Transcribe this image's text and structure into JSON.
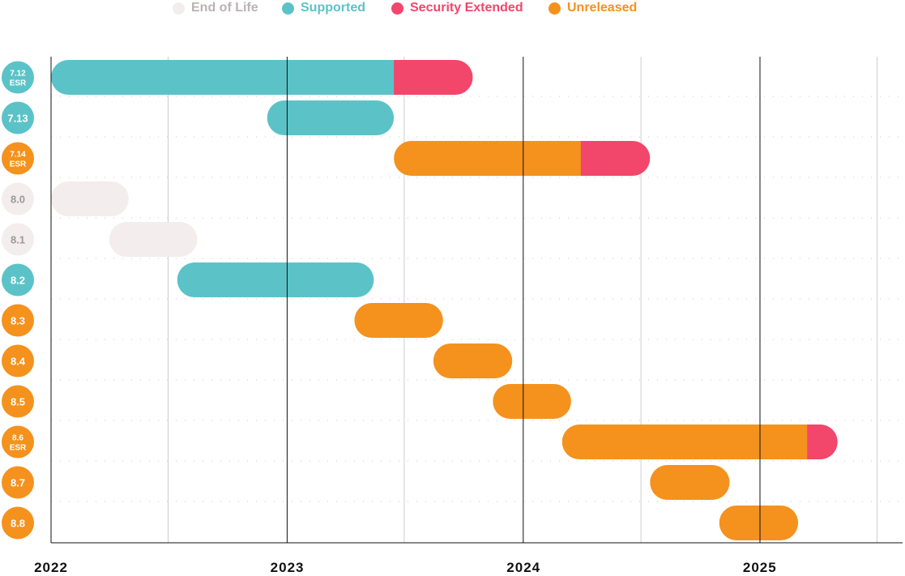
{
  "chart_data": {
    "type": "timeline",
    "legend": [
      {
        "label": "End of Life",
        "color": "#f3eded",
        "text_color": "#b9b3b3"
      },
      {
        "label": "Supported",
        "color": "#5bc3c8",
        "text_color": "#5bc3c8"
      },
      {
        "label": "Security Extended",
        "color": "#f2466b",
        "text_color": "#f2466b"
      },
      {
        "label": "Unreleased",
        "color": "#f4921d",
        "text_color": "#f4921d"
      }
    ],
    "x_ticks": [
      "2022",
      "2023",
      "2024",
      "2025"
    ],
    "xlim": [
      "2022-01-01",
      "2025-07-01"
    ],
    "grid": {
      "year_lines": true,
      "half_year_lines": true,
      "row_dotted_lines": true
    },
    "status_colors": {
      "eol": "#f3eded",
      "supported": "#5bc3c8",
      "security": "#f2466b",
      "unreleased": "#f4921d"
    },
    "versions": [
      {
        "label": "7.12",
        "sublabel": "ESR",
        "status": "supported",
        "segments": [
          {
            "start": "2022-01-01",
            "end": "2023-06-15",
            "status": "supported"
          },
          {
            "start": "2023-06-15",
            "end": "2023-10-15",
            "status": "security"
          }
        ]
      },
      {
        "label": "7.13",
        "sublabel": "",
        "status": "supported",
        "segments": [
          {
            "start": "2022-12-01",
            "end": "2023-06-15",
            "status": "supported"
          }
        ]
      },
      {
        "label": "7.14",
        "sublabel": "ESR",
        "status": "unreleased",
        "segments": [
          {
            "start": "2023-06-15",
            "end": "2024-03-30",
            "status": "unreleased"
          },
          {
            "start": "2024-03-30",
            "end": "2024-07-15",
            "status": "security"
          }
        ]
      },
      {
        "label": "8.0",
        "sublabel": "",
        "status": "eol",
        "segments": [
          {
            "start": "2022-01-01",
            "end": "2022-05-01",
            "status": "eol"
          }
        ]
      },
      {
        "label": "8.1",
        "sublabel": "",
        "status": "eol",
        "segments": [
          {
            "start": "2022-04-01",
            "end": "2022-08-15",
            "status": "eol"
          }
        ]
      },
      {
        "label": "8.2",
        "sublabel": "",
        "status": "supported",
        "segments": [
          {
            "start": "2022-07-15",
            "end": "2023-05-15",
            "status": "supported"
          }
        ]
      },
      {
        "label": "8.3",
        "sublabel": "",
        "status": "unreleased",
        "segments": [
          {
            "start": "2023-04-15",
            "end": "2023-08-30",
            "status": "unreleased"
          }
        ]
      },
      {
        "label": "8.4",
        "sublabel": "",
        "status": "unreleased",
        "segments": [
          {
            "start": "2023-08-15",
            "end": "2023-12-15",
            "status": "unreleased"
          }
        ]
      },
      {
        "label": "8.5",
        "sublabel": "",
        "status": "unreleased",
        "segments": [
          {
            "start": "2023-11-15",
            "end": "2024-03-15",
            "status": "unreleased"
          }
        ]
      },
      {
        "label": "8.6",
        "sublabel": "ESR",
        "status": "unreleased",
        "segments": [
          {
            "start": "2024-03-01",
            "end": "2025-03-15",
            "status": "unreleased"
          },
          {
            "start": "2025-03-15",
            "end": "2025-05-01",
            "status": "security"
          }
        ]
      },
      {
        "label": "8.7",
        "sublabel": "",
        "status": "unreleased",
        "segments": [
          {
            "start": "2024-07-15",
            "end": "2024-11-15",
            "status": "unreleased"
          }
        ]
      },
      {
        "label": "8.8",
        "sublabel": "",
        "status": "unreleased",
        "segments": [
          {
            "start": "2024-10-30",
            "end": "2025-03-01",
            "status": "unreleased"
          }
        ]
      }
    ]
  }
}
